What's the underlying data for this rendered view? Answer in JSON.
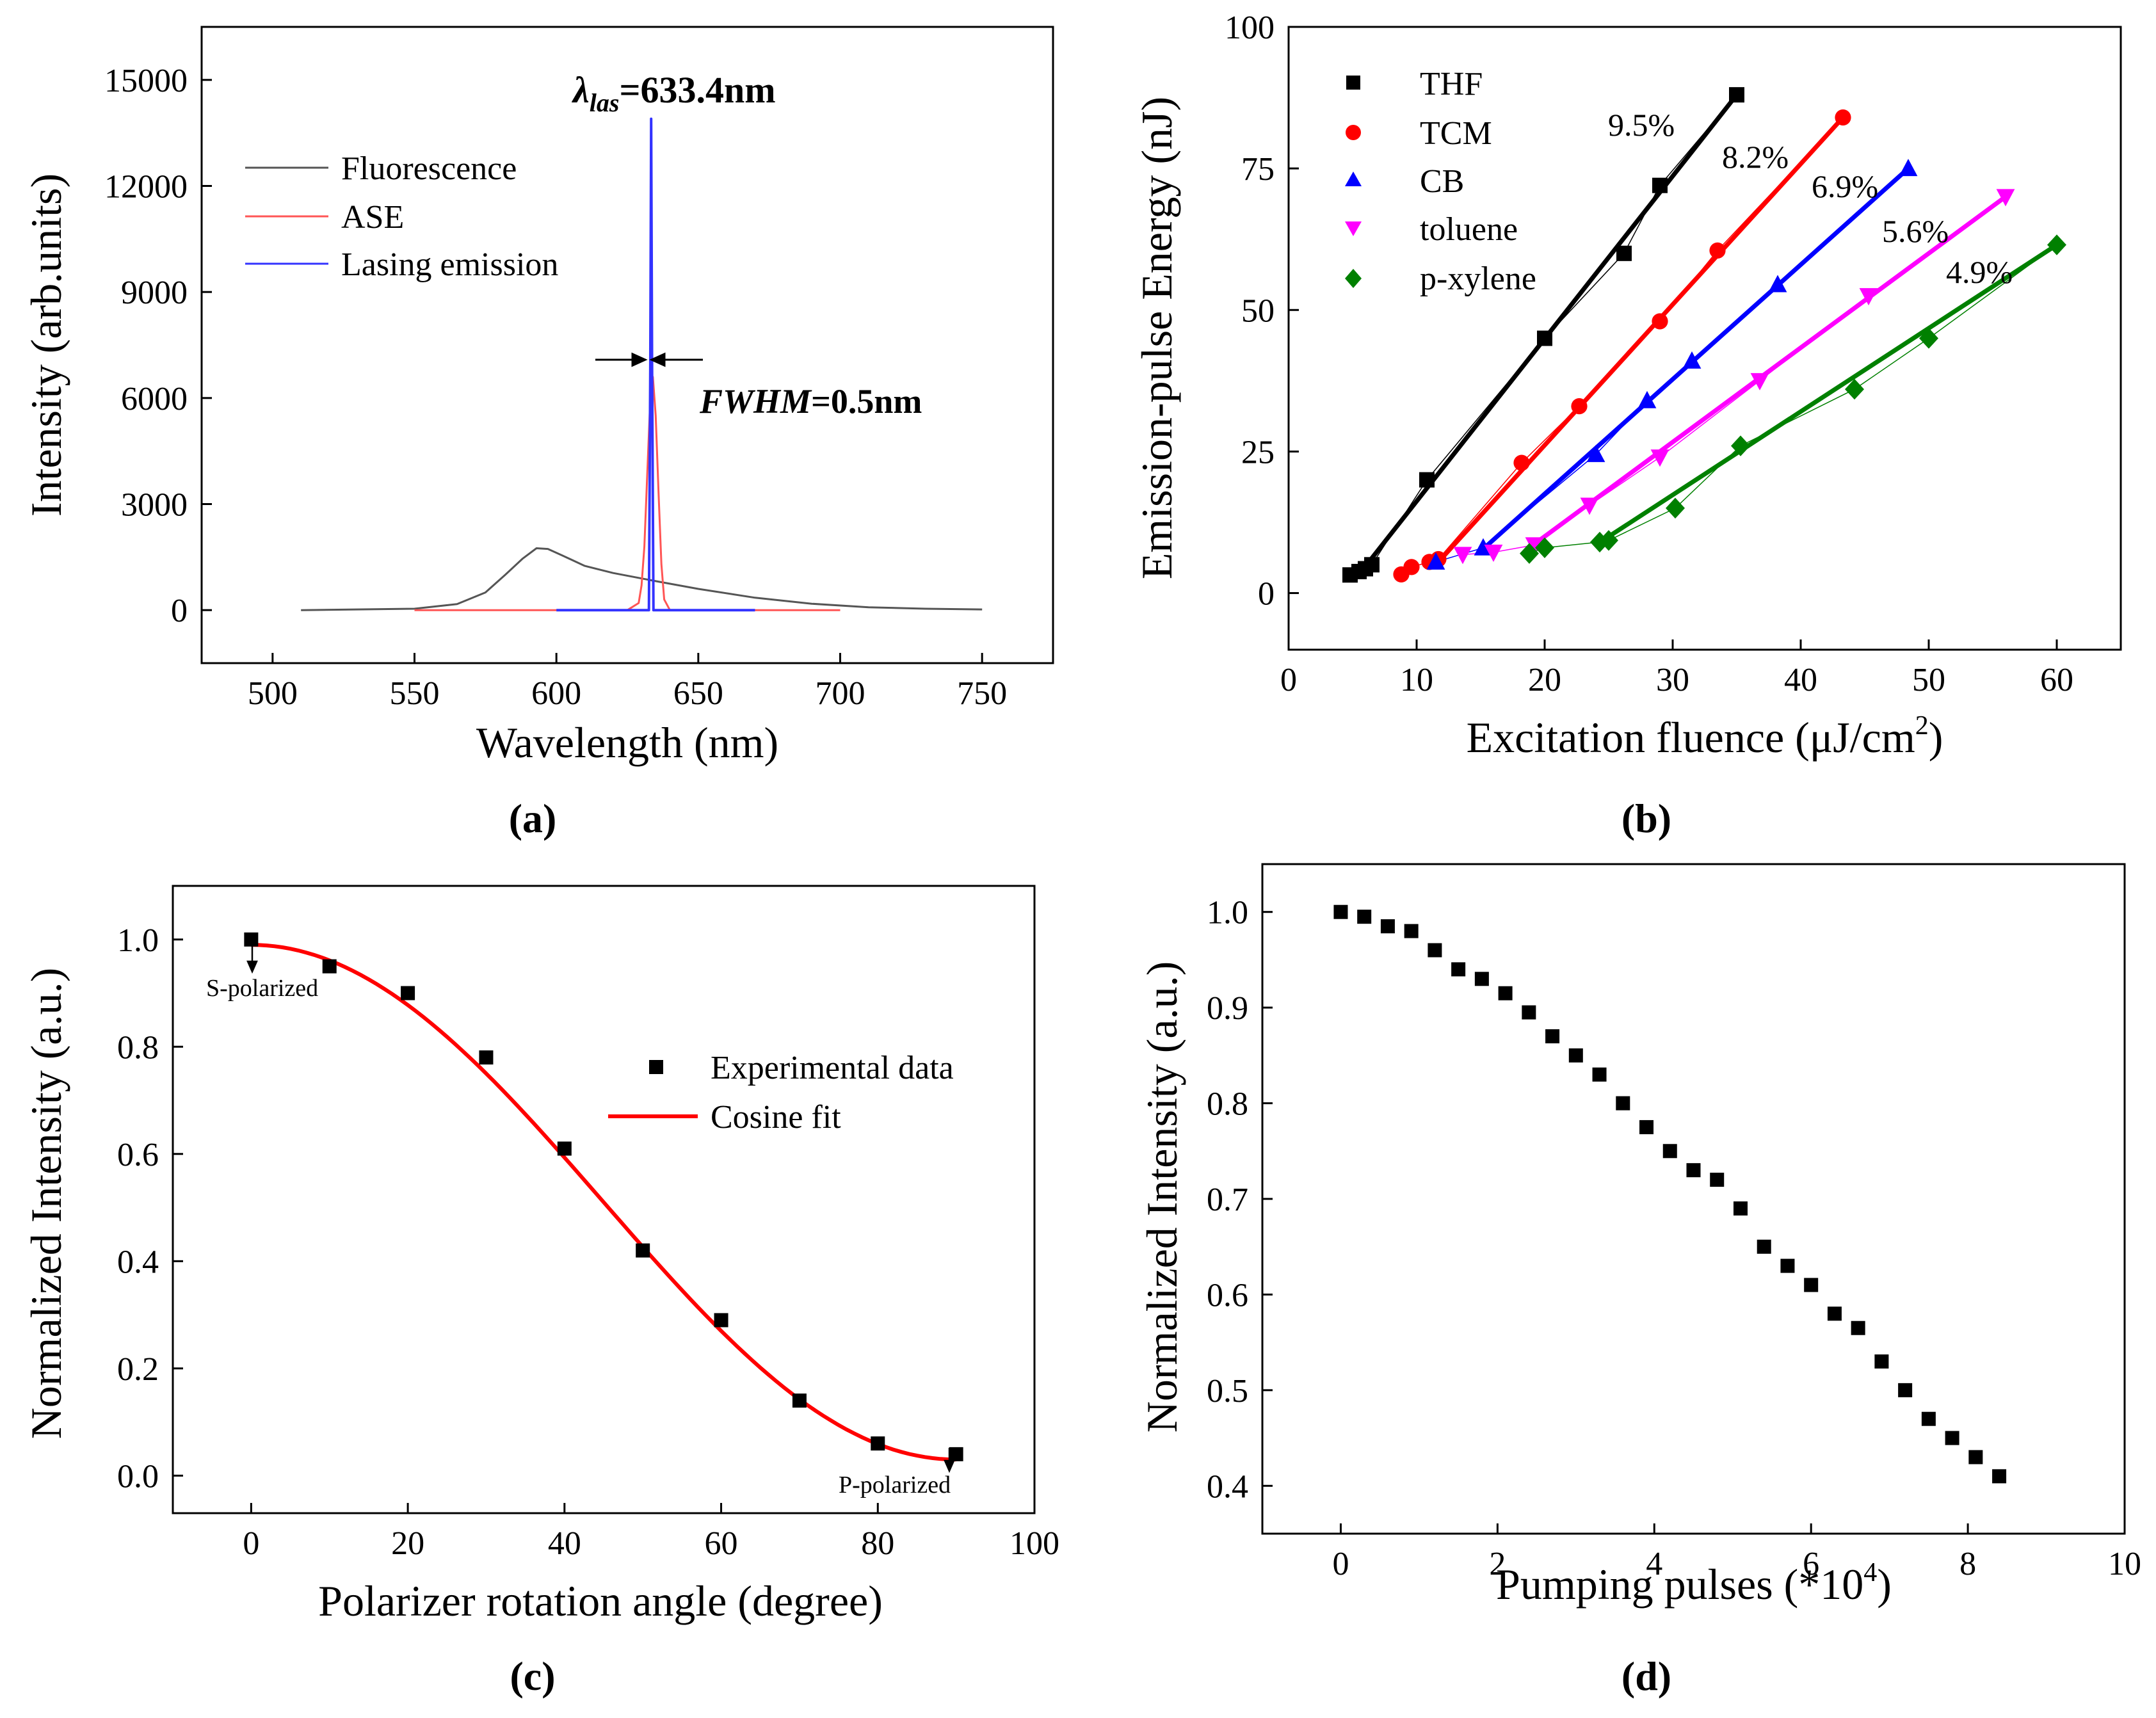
{
  "chart_data": [
    {
      "panel": "(a)",
      "type": "line",
      "xlabel": "Wavelength (nm)",
      "ylabel": "Intensity (arb.units)",
      "xlim": [
        475,
        775
      ],
      "ylim": [
        -1500,
        16500
      ],
      "xticks": [
        500,
        550,
        600,
        650,
        700,
        750
      ],
      "yticks": [
        0,
        3000,
        6000,
        9000,
        12000,
        15000
      ],
      "annotations": {
        "lambda_sym": "λ",
        "lambda_sub": "las",
        "lambda_val": "=633.4nm",
        "fwhm_key": "FWHM",
        "fwhm_val": "=0.5nm"
      },
      "series": [
        {
          "name": "Fluorescence",
          "color": "#555555",
          "x": [
            510,
            550,
            565,
            575,
            582,
            588,
            593,
            597,
            602,
            610,
            620,
            635,
            650,
            670,
            690,
            710,
            730,
            750
          ],
          "y": [
            0,
            40,
            170,
            500,
            1000,
            1450,
            1750,
            1730,
            1550,
            1250,
            1050,
            820,
            600,
            350,
            180,
            80,
            40,
            20
          ]
        },
        {
          "name": "ASE",
          "color": "#ff5555",
          "x": [
            550,
            625,
            629,
            630,
            631,
            632,
            633,
            634,
            635,
            636,
            637,
            638,
            640,
            700
          ],
          "y": [
            0,
            0,
            200,
            700,
            1800,
            3800,
            5800,
            6600,
            5500,
            3300,
            1300,
            300,
            0,
            0
          ]
        },
        {
          "name": "Lasing emission",
          "color": "#3333ff",
          "x": [
            600,
            632.6,
            633.1,
            633.4,
            633.7,
            634.2,
            670
          ],
          "y": [
            0,
            0,
            7000,
            13900,
            7000,
            0,
            0
          ]
        }
      ]
    },
    {
      "panel": "(b)",
      "type": "scatter",
      "xlabel": "Excitation fluence (μJ/cm",
      "xlabel_sup": "2",
      "xlabel_end": ")",
      "ylabel": "Emission-pulse Energy (nJ)",
      "xlim": [
        0,
        65
      ],
      "ylim": [
        -10,
        100
      ],
      "xticks": [
        0,
        10,
        20,
        30,
        40,
        50,
        60
      ],
      "yticks": [
        0,
        25,
        50,
        75,
        100
      ],
      "series": [
        {
          "name": "THF",
          "color": "#000000",
          "marker": "square",
          "efficiency": "9.5%",
          "x": [
            4.8,
            5.5,
            6.0,
            6.5,
            10.8,
            20.0,
            26.2,
            29.0,
            35.0
          ],
          "y": [
            3.2,
            3.8,
            4.3,
            5.0,
            20.0,
            45.0,
            60.0,
            72.0,
            88.0
          ],
          "fit_x": [
            5.5,
            35.0
          ],
          "fit_y": [
            3.3,
            88.0
          ]
        },
        {
          "name": "TCM",
          "color": "#ff0000",
          "marker": "circle",
          "efficiency": "8.2%",
          "x": [
            8.8,
            9.6,
            11.0,
            11.7,
            18.2,
            22.7,
            29.0,
            33.5,
            43.3
          ],
          "y": [
            3.3,
            4.6,
            5.5,
            6.0,
            23.0,
            33.0,
            48.0,
            60.5,
            84.0
          ],
          "fit_x": [
            11.5,
            43.3
          ],
          "fit_y": [
            5.0,
            84.0
          ]
        },
        {
          "name": "CB",
          "color": "#0000ff",
          "marker": "triangle-up",
          "efficiency": "6.9%",
          "x": [
            11.5,
            15.2,
            24.0,
            28.0,
            31.5,
            38.2,
            48.4
          ],
          "y": [
            5.5,
            8.0,
            24.5,
            34.0,
            41.0,
            54.5,
            75.0
          ],
          "fit_x": [
            15.2,
            48.4
          ],
          "fit_y": [
            7.8,
            75.0
          ]
        },
        {
          "name": "toluene",
          "color": "#ff00ff",
          "marker": "triangle-down",
          "efficiency": "5.6%",
          "x": [
            13.6,
            16.0,
            19.2,
            23.5,
            29.0,
            36.8,
            45.3,
            56.0
          ],
          "y": [
            6.8,
            7.2,
            8.5,
            15.5,
            24.0,
            37.5,
            52.5,
            70.0
          ],
          "fit_x": [
            18.5,
            56.0
          ],
          "fit_y": [
            7.5,
            70.0
          ]
        },
        {
          "name": "p-xylene",
          "color": "#008000",
          "marker": "diamond",
          "efficiency": "4.9%",
          "x": [
            18.8,
            20.0,
            24.3,
            25.0,
            30.2,
            35.3,
            44.2,
            50.0,
            60.0
          ],
          "y": [
            7.0,
            8.0,
            9.0,
            9.3,
            15.0,
            26.0,
            36.0,
            45.0,
            61.5
          ],
          "fit_x": [
            24.0,
            60.0
          ],
          "fit_y": [
            8.5,
            61.5
          ]
        }
      ]
    },
    {
      "panel": "(c)",
      "type": "scatter",
      "xlabel": "Polarizer rotation angle (degree)",
      "ylabel": "Normalized Intensity (a.u.)",
      "xlim": [
        -10,
        100
      ],
      "ylim": [
        -0.07,
        1.1
      ],
      "xticks": [
        0,
        20,
        40,
        60,
        80,
        100
      ],
      "yticks": [
        0.0,
        0.2,
        0.4,
        0.6,
        0.8,
        1.0
      ],
      "annotations": {
        "s_pol": "S-polarized",
        "p_pol": "P-polarized"
      },
      "series": [
        {
          "name": "Experimental data",
          "color": "#000000",
          "marker": "square",
          "x": [
            0,
            10,
            20,
            30,
            40,
            50,
            60,
            70,
            80,
            90
          ],
          "y": [
            1.0,
            0.95,
            0.9,
            0.78,
            0.61,
            0.42,
            0.29,
            0.14,
            0.06,
            0.04
          ]
        },
        {
          "name": "Cosine fit",
          "color": "#ff0000",
          "marker": "none",
          "formula": "0.03 + 0.96*cos^2(angle)"
        }
      ]
    },
    {
      "panel": "(d)",
      "type": "scatter",
      "xlabel": "Pumping pulses (*10",
      "xlabel_sup": "4",
      "xlabel_end": ")",
      "ylabel": "Normalized  Intensity (a.u.)",
      "xlim": [
        -1,
        10
      ],
      "ylim": [
        0.35,
        1.05
      ],
      "xticks": [
        0,
        2,
        4,
        6,
        8,
        10
      ],
      "yticks": [
        0.4,
        0.5,
        0.6,
        0.7,
        0.8,
        0.9,
        1.0
      ],
      "series": [
        {
          "name": "Normalized intensity",
          "color": "#000000",
          "marker": "square",
          "x": [
            0,
            0.3,
            0.6,
            0.9,
            1.2,
            1.5,
            1.8,
            2.1,
            2.4,
            2.7,
            3.0,
            3.3,
            3.6,
            3.9,
            4.2,
            4.5,
            4.8,
            5.1,
            5.4,
            5.7,
            6.0,
            6.3,
            6.6,
            6.9,
            7.2,
            7.5,
            7.8,
            8.1,
            8.4
          ],
          "y": [
            1.0,
            0.995,
            0.985,
            0.98,
            0.96,
            0.94,
            0.93,
            0.915,
            0.895,
            0.87,
            0.85,
            0.83,
            0.8,
            0.775,
            0.75,
            0.73,
            0.72,
            0.69,
            0.65,
            0.63,
            0.61,
            0.58,
            0.565,
            0.53,
            0.5,
            0.47,
            0.45,
            0.43,
            0.41
          ]
        }
      ]
    }
  ]
}
